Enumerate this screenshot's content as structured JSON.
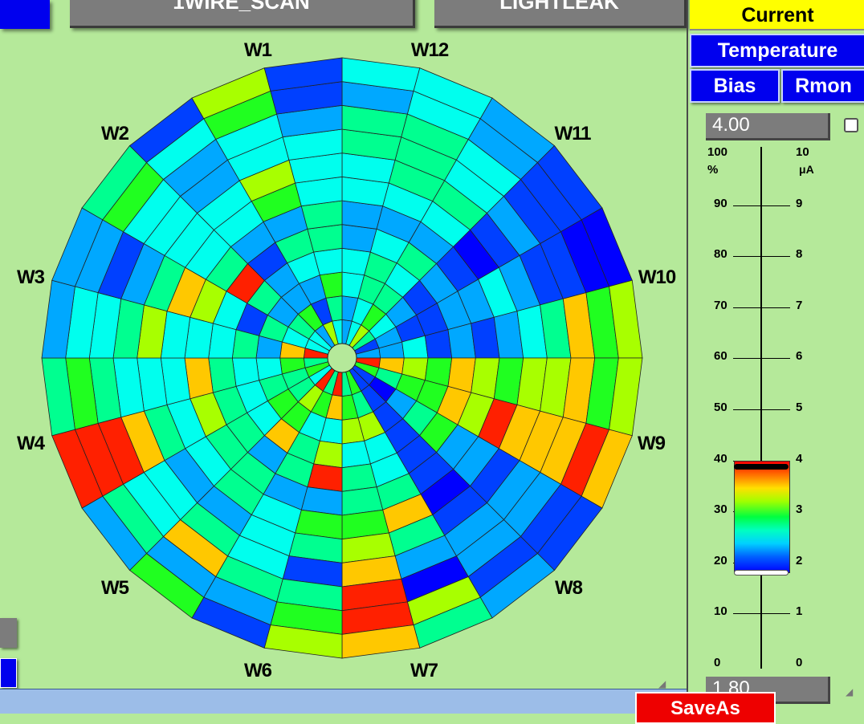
{
  "top_buttons": {
    "left_label": "1WIRE_SCAN",
    "right_label": "LIGHTLEAK"
  },
  "wafer_labels": [
    "W1",
    "W12",
    "W2",
    "W11",
    "W3",
    "W10",
    "W4",
    "W9",
    "W5",
    "W8",
    "W6",
    "W7"
  ],
  "panel": {
    "current_label": "Current",
    "temperature_label": "Temperature",
    "bias_label": "Bias",
    "rmon_label": "Rmon",
    "max_value": "4.00",
    "min_value": "1.80",
    "percent_unit": "%",
    "current_unit": "μA",
    "percent_ticks": [
      "100",
      "90",
      "80",
      "70",
      "60",
      "50",
      "40",
      "30",
      "20",
      "10",
      "0"
    ],
    "current_ticks": [
      "10",
      "9",
      "8",
      "7",
      "6",
      "5",
      "4",
      "3",
      "2",
      "1",
      "0"
    ],
    "scale_low": 1.8,
    "scale_high": 4.0
  },
  "bottom": {
    "saveas_label": "SaveAs"
  },
  "colors": {
    "background": "#b5e99a",
    "highlight": "#ffff00",
    "blue_button": "#0000ee",
    "gray_button": "#7c7c7c",
    "saveas": "#ee0000"
  },
  "wheel": {
    "sectors": 24,
    "rings": 12,
    "cells": [
      "2,2,3,3,2,2,3,3,4,4,2,3",
      "3,3,4,4,3,2,3,4,4,4,3,3",
      "6,5,4,3,4,2,3,4,3,3,2,2",
      "4,3,2,1,2,1,0,1,2,1,1,1",
      "1,2,1,1,2,2,3,2,1,1,0,0",
      "2,2,3,1,2,1,2,3,4,7,5,6",
      "8,7,6,5,7,6,5,6,6,7,5,6",
      "5,4,5,5,7,6,8,7,7,7,8,7",
      "1,0,2,4,5,2,2,1,2,2,1,1",
      "1,1,1,1,1,1,0,1,2,2,1,2",
      "5,4,6,3,3,4,7,4,2,0,6,4",
      "4,5,6,3,4,4,5,6,7,8,8,7",
      "8,7,3,6,8,2,5,4,1,4,5,6",
      "4,5,3,4,4,2,3,3,3,4,2,1",
      "8,6,5,7,2,4,4,2,4,7,2,5",
      "3,4,5,3,4,4,3,2,3,3,4,2",
      "5,4,4,3,4,6,3,4,7,8,8,8",
      "4,5,3,3,4,7,3,3,3,4,5,4",
      "8,7,2,4,3,3,3,6,4,3,3,2",
      "3,3,4,1,3,6,7,4,2,1,2,2",
      "3,4,2,4,8,4,3,3,3,3,5,4",
      "2,5,2,2,1,2,3,3,2,2,3,1",
      "6,1,2,3,4,2,5,6,3,3,5,6",
      "3,4,5,3,4,4,3,3,3,2,1,1"
    ]
  }
}
